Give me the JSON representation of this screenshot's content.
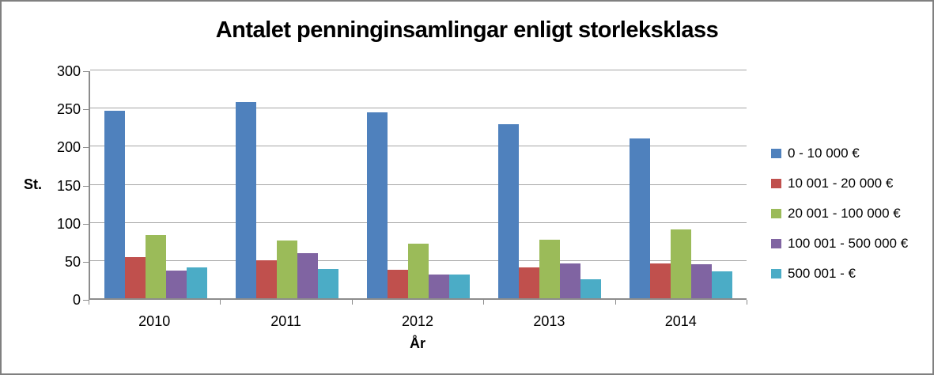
{
  "chart_data": {
    "type": "bar",
    "title": "Antalet penninginsamlingar enligt storleksklass",
    "xlabel": "År",
    "ylabel": "St.",
    "categories": [
      "2010",
      "2011",
      "2012",
      "2013",
      "2014"
    ],
    "series": [
      {
        "name": "0 - 10 000 €",
        "color": "#4F81BD",
        "values": [
          246,
          257,
          244,
          228,
          210
        ]
      },
      {
        "name": "10 001 - 20 000 €",
        "color": "#C0504D",
        "values": [
          54,
          50,
          37,
          40,
          46
        ]
      },
      {
        "name": "20 001 - 100 000 €",
        "color": "#9BBB59",
        "values": [
          83,
          76,
          72,
          77,
          90
        ]
      },
      {
        "name": "100 001 - 500 000 €",
        "color": "#8064A2",
        "values": [
          36,
          59,
          31,
          46,
          45
        ]
      },
      {
        "name": "500 001 - €",
        "color": "#4BACC6",
        "values": [
          41,
          38,
          31,
          25,
          35
        ]
      }
    ],
    "ylim": [
      0,
      300
    ],
    "ytick_step": 50,
    "yticks": [
      "0",
      "50",
      "100",
      "150",
      "200",
      "250",
      "300"
    ],
    "grid": true,
    "legend_position": "right",
    "grid_color": "#A6A6A6",
    "axis_color": "#8C8C8C",
    "frame_border_color": "#808080",
    "background_color": "#FFFFFF"
  }
}
